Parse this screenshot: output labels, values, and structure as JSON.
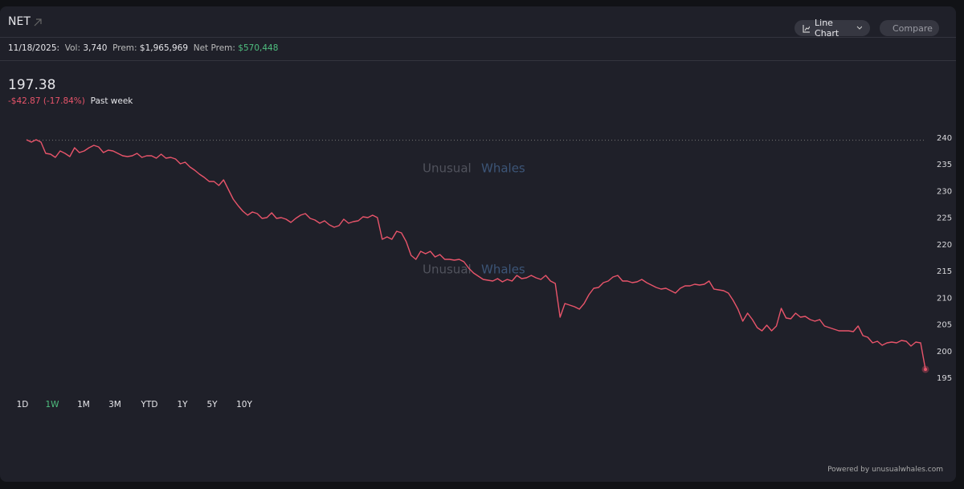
{
  "header": {
    "symbol": "NET",
    "buttons": [
      "Line Chart",
      "Compare"
    ]
  },
  "stats": {
    "date": "11/18/2025:",
    "vol_label": "Vol:",
    "vol": "3,740",
    "prem_label": "Prem:",
    "prem": "$1,965,969",
    "net_prem_label": "Net Prem:",
    "net_prem": "$570,448"
  },
  "quote": {
    "price": "197.38",
    "change": "-$42.87 (-17.84%)",
    "period": "Past week"
  },
  "watermark": {
    "word1": "Unusual",
    "word2": "Whales"
  },
  "ranges": [
    "1D",
    "1W",
    "1M",
    "3M",
    "YTD",
    "1Y",
    "5Y",
    "10Y"
  ],
  "active_range": 1,
  "footer": "Powered by unusualwhales.com",
  "chart_data": {
    "type": "line",
    "color": "#e8546a",
    "values": [
      239.7,
      239.25,
      239.7,
      239.25,
      237.14,
      236.99,
      236.39,
      237.59,
      237.14,
      236.54,
      238.19,
      237.29,
      237.59,
      238.19,
      238.65,
      238.34,
      237.29,
      237.74,
      237.59,
      237.14,
      236.69,
      236.54,
      236.69,
      237.14,
      236.39,
      236.69,
      236.69,
      236.24,
      236.99,
      236.24,
      236.39,
      236.09,
      235.18,
      235.49,
      234.58,
      233.98,
      233.23,
      232.63,
      231.87,
      231.87,
      231.12,
      232.17,
      230.37,
      228.56,
      227.36,
      226.3,
      225.55,
      226.15,
      225.85,
      224.95,
      225.1,
      226.0,
      224.95,
      225.1,
      224.8,
      224.2,
      224.95,
      225.55,
      225.85,
      224.95,
      224.65,
      224.05,
      224.5,
      223.75,
      223.29,
      223.6,
      224.8,
      224.05,
      224.35,
      224.5,
      225.25,
      225.1,
      225.55,
      225.1,
      221.04,
      221.49,
      221.04,
      222.54,
      222.24,
      220.59,
      218.03,
      217.27,
      218.78,
      218.33,
      218.78,
      217.73,
      218.18,
      217.27,
      217.27,
      217.12,
      217.27,
      216.82,
      215.62,
      214.72,
      214.11,
      213.51,
      213.36,
      213.21,
      213.66,
      213.06,
      213.51,
      213.21,
      214.26,
      213.66,
      213.81,
      214.26,
      213.81,
      213.51,
      214.26,
      213.21,
      212.76,
      206.44,
      209.0,
      208.7,
      208.4,
      207.94,
      209.0,
      210.65,
      211.86,
      212.01,
      212.91,
      213.21,
      213.96,
      214.26,
      213.21,
      213.21,
      212.91,
      213.06,
      213.51,
      212.91,
      212.46,
      212.01,
      211.71,
      211.86,
      211.41,
      210.95,
      211.86,
      212.31,
      212.31,
      212.61,
      212.46,
      212.61,
      213.21,
      211.71,
      211.56,
      211.41,
      210.95,
      209.6,
      207.94,
      205.69,
      207.19,
      205.99,
      204.48,
      203.88,
      204.93,
      203.88,
      204.78,
      208.09,
      206.29,
      206.14,
      207.19,
      206.44,
      206.59,
      205.99,
      205.69,
      205.99,
      204.78,
      204.48,
      204.18,
      203.88,
      203.88,
      203.88,
      203.73,
      204.78,
      202.98,
      202.68,
      201.63,
      201.92,
      201.17,
      201.63,
      201.78,
      201.63,
      202.08,
      201.92,
      201.02,
      201.78,
      201.63,
      196.66
    ],
    "ylim": [
      193,
      242
    ],
    "yticks": [
      240,
      235,
      230,
      225,
      220,
      215,
      210,
      205,
      200,
      195
    ],
    "reference_line": 239.6
  }
}
